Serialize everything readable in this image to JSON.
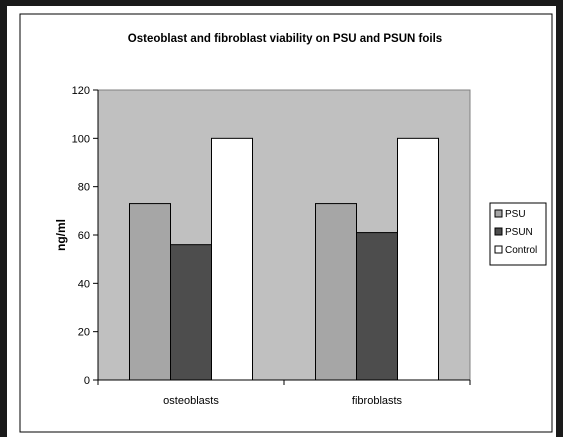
{
  "chart_data": {
    "type": "bar",
    "title": "Osteoblast and fibroblast viability on PSU and PSUN foils",
    "xlabel": "",
    "ylabel": "ng/ml",
    "ylim": [
      0,
      120
    ],
    "yticks": [
      0,
      20,
      40,
      60,
      80,
      100,
      120
    ],
    "categories": [
      "osteoblasts",
      "fibroblasts"
    ],
    "series": [
      {
        "name": "PSU",
        "values": [
          73,
          73
        ],
        "color": "#a6a6a6"
      },
      {
        "name": "PSUN",
        "values": [
          56,
          61
        ],
        "color": "#4d4d4d"
      },
      {
        "name": "Control",
        "values": [
          100,
          100
        ],
        "color": "#ffffff"
      }
    ],
    "plot_background": "#c0c0c0",
    "grid": false,
    "legend_position": "right"
  }
}
